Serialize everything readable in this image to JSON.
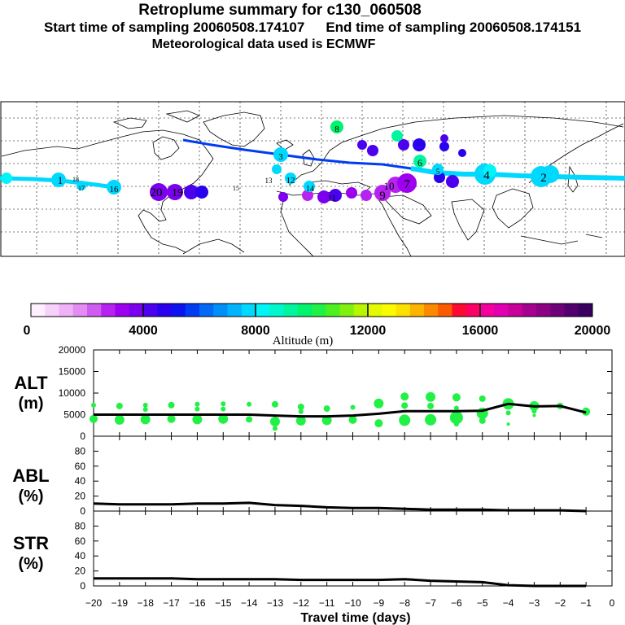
{
  "header": {
    "title": "Retroplume summary for c130_060508",
    "start_label": "Start time of sampling 20060508.174107",
    "end_label": "End time of sampling 20060508.174151",
    "met_label": "Meteorological data used is ECMWF"
  },
  "colorbar": {
    "title": "Altitude (m)",
    "ticks": [
      "0",
      "4000",
      "8000",
      "12000",
      "16000",
      "20000"
    ],
    "colors": [
      "#fff0ff",
      "#f6d2fb",
      "#efb2f7",
      "#e38cf3",
      "#cf5cf0",
      "#b622ef",
      "#9c00ee",
      "#7a00ee",
      "#4b00ee",
      "#2a00ee",
      "#0b14ee",
      "#003cf2",
      "#0069f6",
      "#008ff8",
      "#00b3fb",
      "#00d8fe",
      "#00f4f8",
      "#00f6cc",
      "#00f59c",
      "#00f36c",
      "#20f144",
      "#4cf020",
      "#80f010",
      "#b8f500",
      "#e4fa00",
      "#fcfa00",
      "#fce100",
      "#fcb400",
      "#fc8a00",
      "#fc5a00",
      "#fc0a30",
      "#fc0066",
      "#f4009e",
      "#e000b0",
      "#c60098",
      "#a60090",
      "#8c0084",
      "#6e007a",
      "#520070",
      "#3a0060"
    ]
  },
  "chart_data": [
    {
      "type": "scatter",
      "panel": "ALT",
      "ylabel": "ALT (m)",
      "ylim": [
        0,
        20000
      ],
      "yticks": [
        "0",
        "5000",
        "10000",
        "15000",
        "20000"
      ],
      "xlim": [
        -20,
        0
      ],
      "median_line": {
        "name": "median altitude",
        "x": [
          -20,
          -19,
          -18,
          -17,
          -16,
          -15,
          -14,
          -13,
          -12,
          -11,
          -10,
          -9,
          -8,
          -7,
          -6,
          -5,
          -4,
          -3,
          -2,
          -1
        ],
        "y": [
          5000,
          5000,
          5000,
          5000,
          5000,
          5000,
          5000,
          4800,
          4600,
          4600,
          4800,
          5200,
          5800,
          5800,
          5800,
          5900,
          7500,
          6900,
          7000,
          5500
        ]
      },
      "scatter_series": {
        "name": "altitude distribution",
        "color": "#20f144",
        "points": [
          [
            -20,
            7200,
            3
          ],
          [
            -20,
            4000,
            5
          ],
          [
            -19,
            7000,
            4
          ],
          [
            -19,
            3800,
            6
          ],
          [
            -18,
            7200,
            3
          ],
          [
            -18,
            6200,
            3
          ],
          [
            -18,
            3900,
            6
          ],
          [
            -17,
            7200,
            4
          ],
          [
            -17,
            4000,
            5
          ],
          [
            -16,
            7400,
            3
          ],
          [
            -16,
            6300,
            3
          ],
          [
            -16,
            3900,
            6
          ],
          [
            -15,
            7500,
            3
          ],
          [
            -15,
            6300,
            3
          ],
          [
            -15,
            4000,
            6
          ],
          [
            -14,
            7400,
            3
          ],
          [
            -14,
            3900,
            4
          ],
          [
            -13,
            7400,
            4
          ],
          [
            -13,
            3400,
            6
          ],
          [
            -13,
            1800,
            3
          ],
          [
            -12,
            6800,
            4
          ],
          [
            -12,
            5700,
            3
          ],
          [
            -12,
            3600,
            6
          ],
          [
            -11,
            6400,
            4
          ],
          [
            -11,
            3700,
            6
          ],
          [
            -10,
            6700,
            3
          ],
          [
            -10,
            3800,
            5
          ],
          [
            -9,
            7600,
            6
          ],
          [
            -9,
            3000,
            5
          ],
          [
            -8,
            9200,
            5
          ],
          [
            -8,
            7100,
            4
          ],
          [
            -8,
            3700,
            7
          ],
          [
            -7,
            9100,
            6
          ],
          [
            -7,
            7000,
            4
          ],
          [
            -7,
            3800,
            7
          ],
          [
            -6,
            9000,
            5
          ],
          [
            -6,
            6500,
            3
          ],
          [
            -6,
            4300,
            8
          ],
          [
            -6,
            2800,
            3
          ],
          [
            -5,
            8700,
            4
          ],
          [
            -5,
            5300,
            7
          ],
          [
            -5,
            3600,
            4
          ],
          [
            -4,
            7500,
            7
          ],
          [
            -4,
            5400,
            3
          ],
          [
            -4,
            2800,
            2
          ],
          [
            -3,
            7000,
            6
          ],
          [
            -3,
            5800,
            3
          ],
          [
            -3,
            4800,
            2
          ],
          [
            -2,
            7000,
            4
          ],
          [
            -1,
            5700,
            5
          ]
        ]
      }
    },
    {
      "type": "line",
      "panel": "ABL",
      "ylabel": "ABL (%)",
      "ylim": [
        0,
        100
      ],
      "yticks": [
        "0",
        "20",
        "40",
        "60",
        "80"
      ],
      "x": [
        -20,
        -19,
        -18,
        -17,
        -16,
        -15,
        -14,
        -13,
        -12,
        -11,
        -10,
        -9,
        -8,
        -7,
        -6,
        -5,
        -4,
        -3,
        -2,
        -1
      ],
      "y": [
        10,
        9,
        9,
        9,
        10,
        10,
        11,
        8,
        7,
        5,
        4,
        4,
        3,
        2,
        2,
        2,
        1,
        1,
        1,
        0
      ]
    },
    {
      "type": "line",
      "panel": "STR",
      "ylabel": "STR (%)",
      "ylim": [
        0,
        100
      ],
      "yticks": [
        "0",
        "20",
        "40",
        "60",
        "80"
      ],
      "x": [
        -20,
        -19,
        -18,
        -17,
        -16,
        -15,
        -14,
        -13,
        -12,
        -11,
        -10,
        -9,
        -8,
        -7,
        -6,
        -5,
        -4,
        -3,
        -2,
        -1
      ],
      "y": [
        10,
        10,
        10,
        10,
        9,
        9,
        9,
        9,
        8,
        8,
        8,
        8,
        9,
        7,
        6,
        5,
        1,
        0,
        0,
        0
      ]
    }
  ],
  "shared_xaxis": {
    "label": "Travel time (days)",
    "ticks": [
      "−20",
      "−19",
      "−18",
      "−17",
      "−16",
      "−15",
      "−14",
      "−13",
      "−12",
      "−11",
      "−10",
      "−9",
      "−8",
      "−7",
      "−6",
      "−5",
      "−4",
      "−3",
      "−2",
      "−1",
      "0"
    ]
  },
  "map": {
    "plume_markers": [
      {
        "label": "1",
        "color": "#00f4f8",
        "size": 10
      },
      {
        "label": "2",
        "color": "#00f4f8",
        "size": 14
      },
      {
        "label": "3",
        "color": "#00d8fe",
        "size": 8
      },
      {
        "label": "4",
        "color": "#00f4f8",
        "size": 15
      },
      {
        "label": "5",
        "color": "#00f4f8",
        "size": 6
      },
      {
        "label": "6",
        "color": "#00f59c",
        "size": 9
      },
      {
        "label": "7",
        "color": "#b622ef",
        "size": 12
      },
      {
        "label": "8",
        "color": "#00f36c",
        "size": 8
      },
      {
        "label": "9",
        "color": "#b622ef",
        "size": 12
      },
      {
        "label": "10",
        "color": "#b622ef",
        "size": 10
      },
      {
        "label": "11",
        "color": "#7a00ee",
        "size": 7
      },
      {
        "label": "12",
        "color": "#00d8fe",
        "size": 8
      },
      {
        "label": "13",
        "color": "#00d8fe",
        "size": 6
      },
      {
        "label": "14",
        "color": "#00d8fe",
        "size": 7
      },
      {
        "label": "15",
        "color": "#00d8fe",
        "size": 5
      },
      {
        "label": "16",
        "color": "#00b3fb",
        "size": 8
      },
      {
        "label": "17",
        "color": "#00f4f8",
        "size": 5
      },
      {
        "label": "18",
        "color": "#00f4f8",
        "size": 5
      },
      {
        "label": "19",
        "color": "#7a00ee",
        "size": 11
      },
      {
        "label": "20",
        "color": "#7a00ee",
        "size": 12
      }
    ]
  }
}
